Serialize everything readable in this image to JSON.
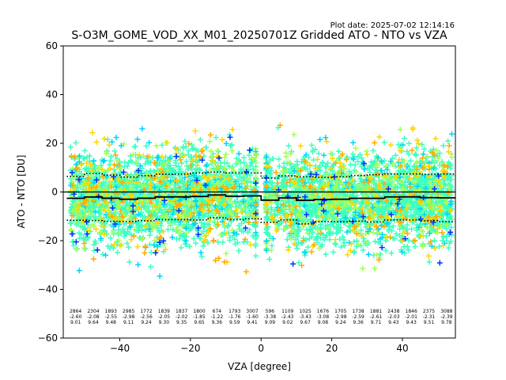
{
  "header": {
    "plot_date": "Plot date: 2025-07-02 12:14:16",
    "title": "S-O3M_GOME_VOD_XX_M01_20250701Z Gridded ATO - NTO vs VZA"
  },
  "chart_data": {
    "type": "scatter",
    "title": "S-O3M_GOME_VOD_XX_M01_20250701Z Gridded ATO - NTO vs VZA",
    "xlabel": "VZA [degree]",
    "ylabel": "ATO - NTO [DU]",
    "xlim": [
      -56,
      55
    ],
    "ylim": [
      -60,
      60
    ],
    "xticks": [
      -40,
      -20,
      0,
      20,
      40
    ],
    "yticks": [
      -60,
      -40,
      -20,
      0,
      20,
      40,
      60
    ],
    "marker": "plus",
    "colors": {
      "dense": "#3dffc0",
      "mid": "#a5ff5a",
      "yellow": "#ffd500",
      "orange": "#ffaa00",
      "cyan": "#00d4ff",
      "blue": "#0030ff",
      "cloud_green": "#b6ff4f"
    },
    "scatter_extent": {
      "vza": [
        -54,
        54
      ],
      "dense_range": [
        -30,
        22
      ],
      "outlier_range": [
        -48,
        40
      ]
    },
    "bins": {
      "vza": [
        -52.5,
        -47.5,
        -42.5,
        -37.5,
        -32.5,
        -27.5,
        -22.5,
        -17.5,
        -12.5,
        -7.5,
        -2.5,
        2.5,
        7.5,
        12.5,
        17.5,
        22.5,
        27.5,
        32.5,
        37.5,
        42.5,
        47.5,
        52.5
      ],
      "count": [
        "2864",
        "2304",
        "1893",
        "2985",
        "1772",
        "1839",
        "1837",
        "1800",
        "674",
        "1793",
        "3007",
        "596",
        "1109",
        "1025",
        "1676",
        "1705",
        "1738",
        "1881",
        "2438",
        "1846",
        "2375",
        "3088"
      ],
      "mean": [
        "-2.60",
        "-2.08",
        "-2.55",
        "-2.98",
        "-2.56",
        "-2.05",
        "-2.02",
        "-1.85",
        "-1.22",
        "-1.76",
        "-1.60",
        "-3.38",
        "-2.43",
        "-3.43",
        "-3.08",
        "-2.98",
        "-2.59",
        "-2.61",
        "-2.03",
        "-2.01",
        "-2.31",
        "-2.39"
      ],
      "std": [
        "9.01",
        "9.64",
        "9.48",
        "9.11",
        "9.24",
        "9.30",
        "9.35",
        "9.65",
        "9.36",
        "9.59",
        "9.41",
        "9.09",
        "9.02",
        "9.67",
        "9.08",
        "9.24",
        "9.36",
        "9.71",
        "9.43",
        "9.43",
        "9.51",
        "9.78"
      ]
    },
    "lines": {
      "zero": 0,
      "style_mean": "solid",
      "style_std": "dotted"
    }
  }
}
